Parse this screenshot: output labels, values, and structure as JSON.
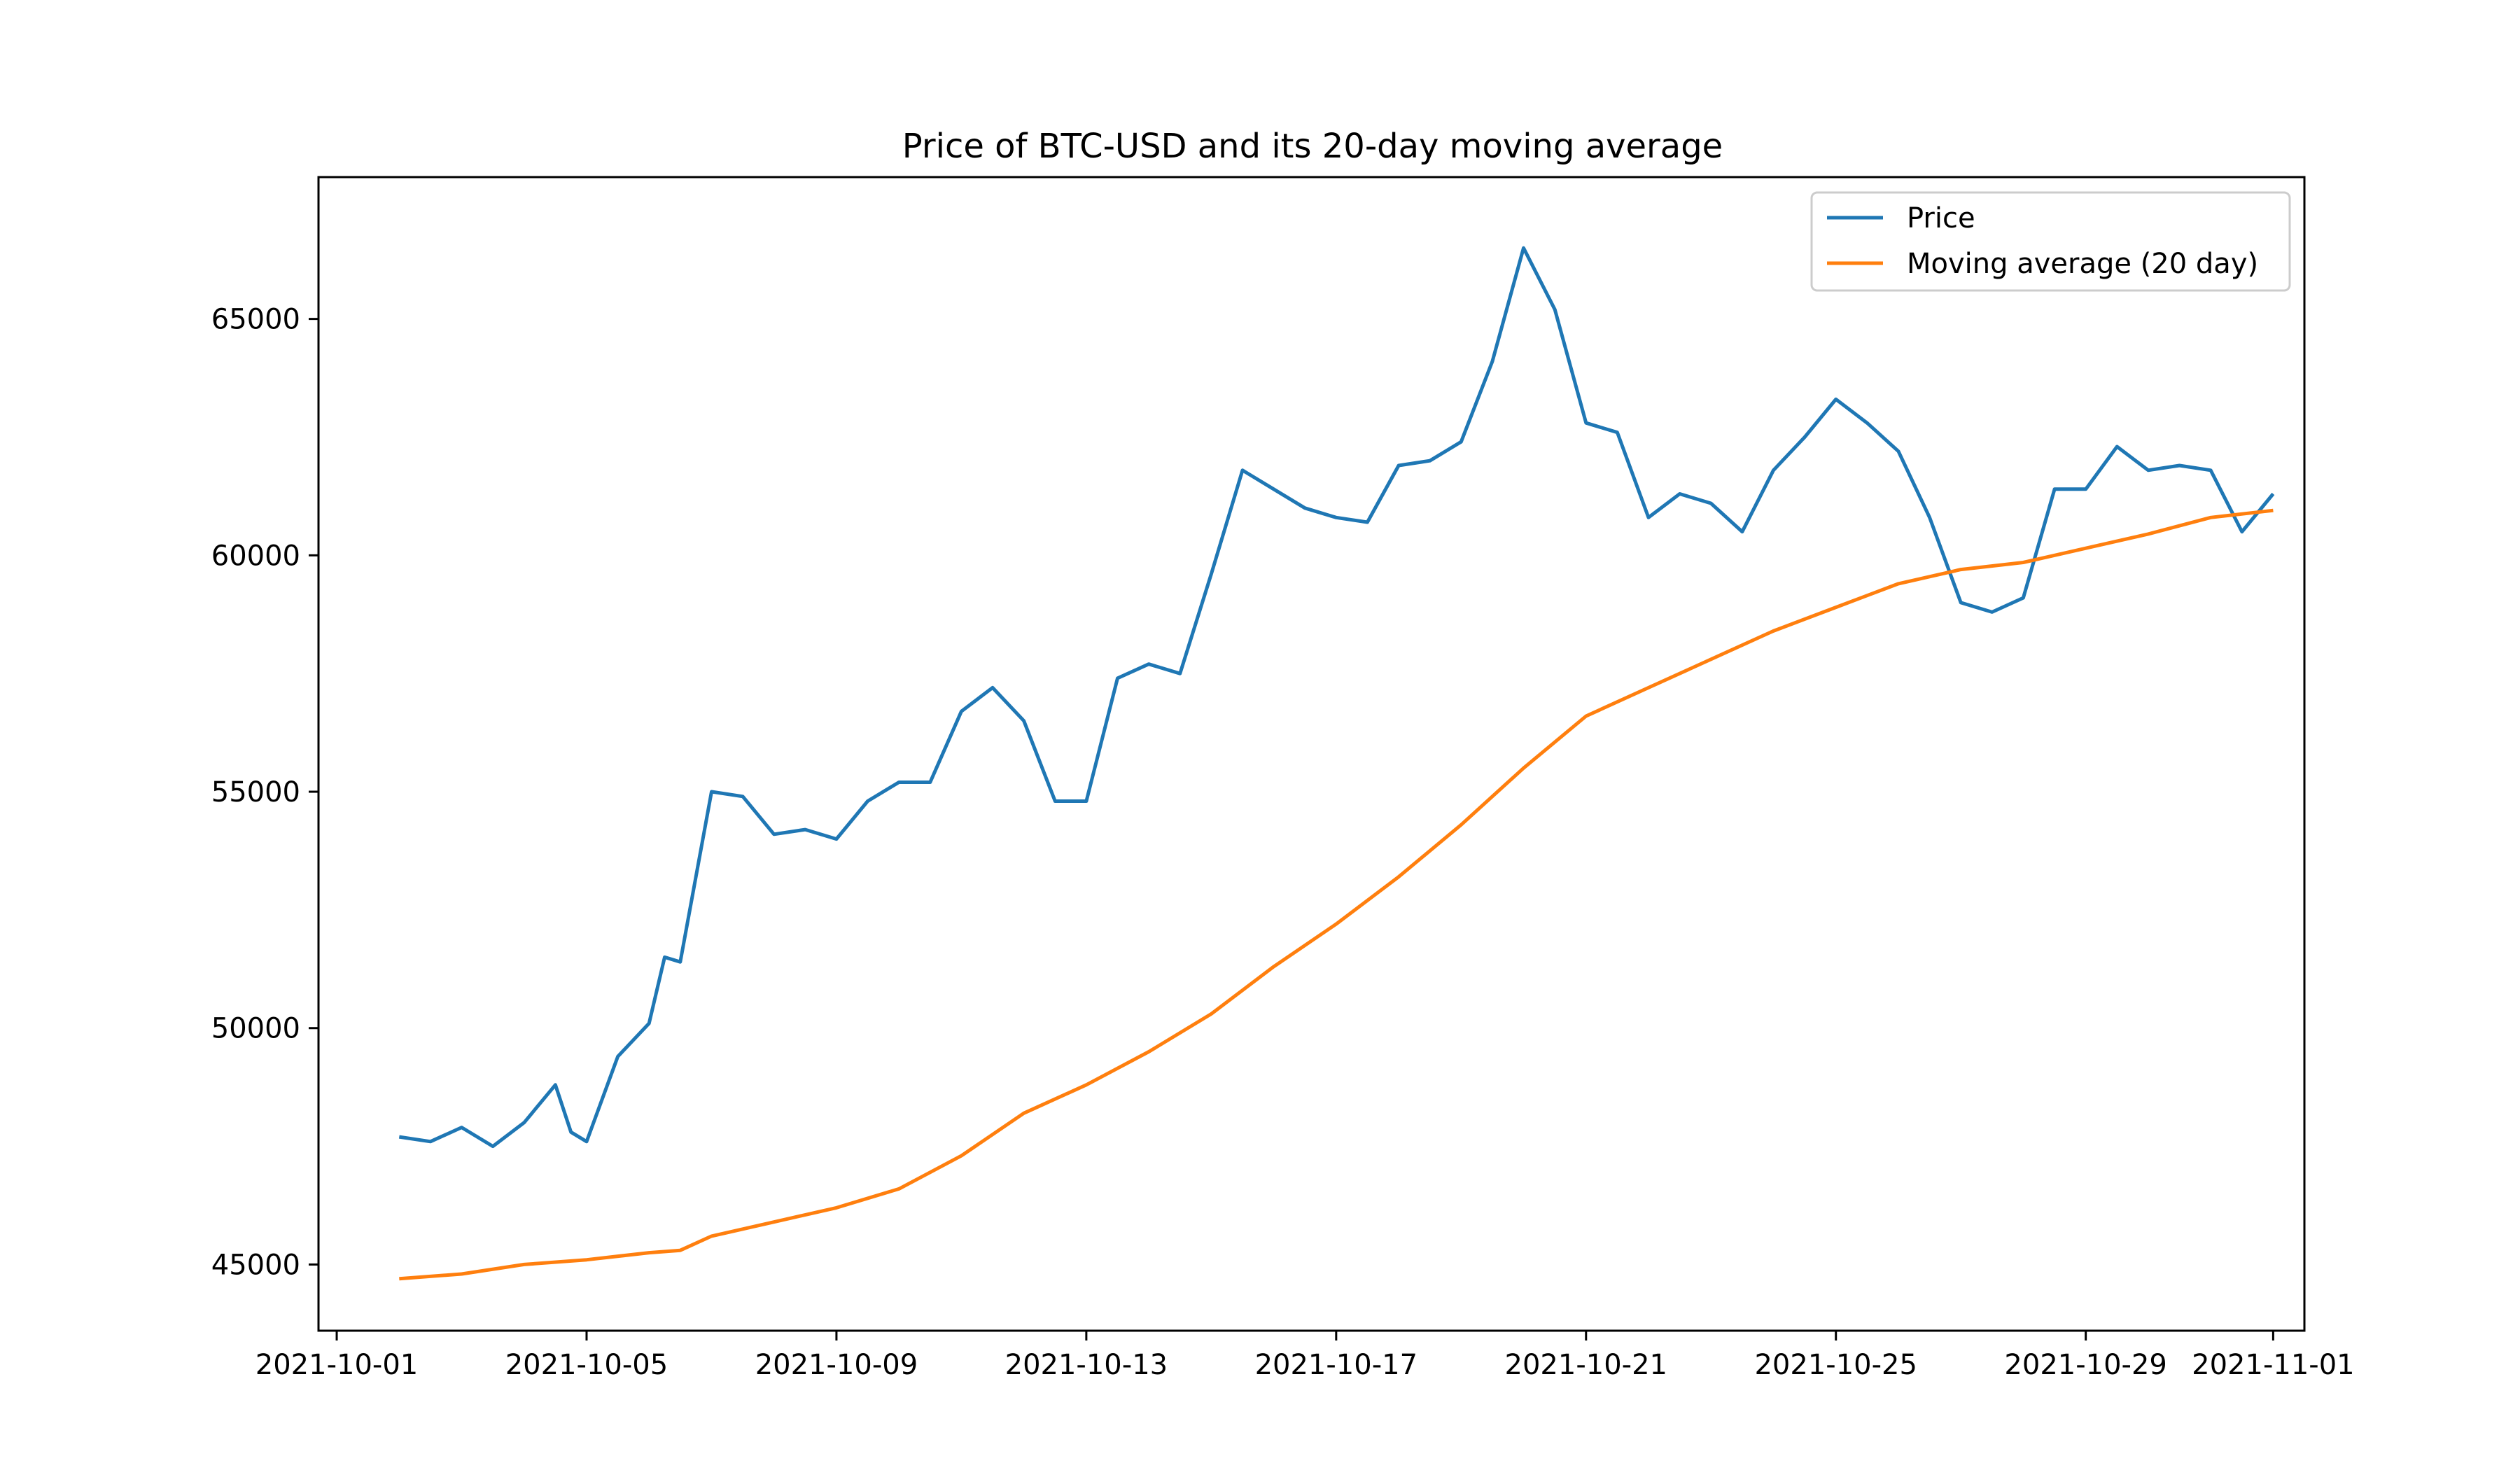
{
  "chart_data": {
    "type": "line",
    "title": "Price of BTC-USD and its 20-day moving average",
    "xlabel": "",
    "ylabel": "",
    "x_range": [
      "2021-10-01",
      "2021-11-01"
    ],
    "xlim": [
      "2021-09-30T17:00",
      "2021-11-01T12:00"
    ],
    "ylim": [
      43600,
      68000
    ],
    "x_ticks": [
      "2021-10-01",
      "2021-10-05",
      "2021-10-09",
      "2021-10-13",
      "2021-10-17",
      "2021-10-21",
      "2021-10-25",
      "2021-10-29",
      "2021-11-01"
    ],
    "y_ticks": [
      45000,
      50000,
      55000,
      60000,
      65000
    ],
    "y_tick_labels": [
      "45000",
      "50000",
      "55000",
      "60000",
      "65000"
    ],
    "grid": false,
    "legend_position": "top-right",
    "legend": [
      "Price",
      "Moving average (20 day)"
    ],
    "series": [
      {
        "name": "Price",
        "color": "#1f77b4",
        "x": [
          "2021-10-02T00:00",
          "2021-10-02T12:00",
          "2021-10-03T00:00",
          "2021-10-03T12:00",
          "2021-10-04T00:00",
          "2021-10-04T12:00",
          "2021-10-04T18:00",
          "2021-10-05T00:00",
          "2021-10-05T12:00",
          "2021-10-06T00:00",
          "2021-10-06T06:00",
          "2021-10-06T12:00",
          "2021-10-07T00:00",
          "2021-10-07T12:00",
          "2021-10-08T00:00",
          "2021-10-08T12:00",
          "2021-10-09T00:00",
          "2021-10-09T12:00",
          "2021-10-10T00:00",
          "2021-10-10T12:00",
          "2021-10-11T00:00",
          "2021-10-11T12:00",
          "2021-10-12T00:00",
          "2021-10-12T12:00",
          "2021-10-13T00:00",
          "2021-10-13T12:00",
          "2021-10-14T00:00",
          "2021-10-14T12:00",
          "2021-10-15T00:00",
          "2021-10-15T12:00",
          "2021-10-16T00:00",
          "2021-10-16T12:00",
          "2021-10-17T00:00",
          "2021-10-17T12:00",
          "2021-10-18T00:00",
          "2021-10-18T12:00",
          "2021-10-19T00:00",
          "2021-10-19T12:00",
          "2021-10-20T00:00",
          "2021-10-20T12:00",
          "2021-10-21T00:00",
          "2021-10-21T12:00",
          "2021-10-22T00:00",
          "2021-10-22T12:00",
          "2021-10-23T00:00",
          "2021-10-23T12:00",
          "2021-10-24T00:00",
          "2021-10-24T12:00",
          "2021-10-25T00:00",
          "2021-10-25T12:00",
          "2021-10-26T00:00",
          "2021-10-26T12:00",
          "2021-10-27T00:00",
          "2021-10-27T12:00",
          "2021-10-28T00:00",
          "2021-10-28T12:00",
          "2021-10-29T00:00",
          "2021-10-29T12:00",
          "2021-10-30T00:00",
          "2021-10-30T12:00",
          "2021-10-31T00:00",
          "2021-10-31T12:00",
          "2021-11-01T00:00"
        ],
        "y": [
          47700,
          47600,
          47900,
          47500,
          48000,
          48800,
          47800,
          47600,
          49400,
          50100,
          51500,
          51400,
          55000,
          54900,
          54100,
          54200,
          54000,
          54800,
          55200,
          55200,
          56700,
          57200,
          56500,
          54800,
          54800,
          57400,
          57700,
          57500,
          59600,
          61800,
          61400,
          61000,
          60800,
          60700,
          61900,
          62000,
          62400,
          64100,
          66500,
          65200,
          62800,
          62600,
          60800,
          61300,
          61100,
          60500,
          61800,
          62500,
          63300,
          62800,
          62200,
          60800,
          59000,
          58800,
          59100,
          61400,
          61400,
          62300,
          61800,
          61900,
          61800,
          60500,
          61300
        ]
      },
      {
        "name": "Moving average (20 day)",
        "color": "#ff7f0e",
        "x": [
          "2021-10-02T00:00",
          "2021-10-03T00:00",
          "2021-10-04T00:00",
          "2021-10-05T00:00",
          "2021-10-06T00:00",
          "2021-10-06T12:00",
          "2021-10-07T00:00",
          "2021-10-08T00:00",
          "2021-10-09T00:00",
          "2021-10-10T00:00",
          "2021-10-11T00:00",
          "2021-10-12T00:00",
          "2021-10-13T00:00",
          "2021-10-14T00:00",
          "2021-10-15T00:00",
          "2021-10-16T00:00",
          "2021-10-17T00:00",
          "2021-10-18T00:00",
          "2021-10-19T00:00",
          "2021-10-20T00:00",
          "2021-10-21T00:00",
          "2021-10-22T00:00",
          "2021-10-23T00:00",
          "2021-10-24T00:00",
          "2021-10-25T00:00",
          "2021-10-26T00:00",
          "2021-10-27T00:00",
          "2021-10-28T00:00",
          "2021-10-29T00:00",
          "2021-10-30T00:00",
          "2021-10-31T00:00",
          "2021-11-01T00:00"
        ],
        "y": [
          44700,
          44800,
          45000,
          45100,
          45250,
          45300,
          45600,
          45900,
          46200,
          46600,
          47300,
          48200,
          48800,
          49500,
          50300,
          51300,
          52200,
          53200,
          54300,
          55500,
          56600,
          57200,
          57800,
          58400,
          58900,
          59400,
          59700,
          59850,
          60150,
          60450,
          60800,
          60950
        ]
      }
    ]
  }
}
